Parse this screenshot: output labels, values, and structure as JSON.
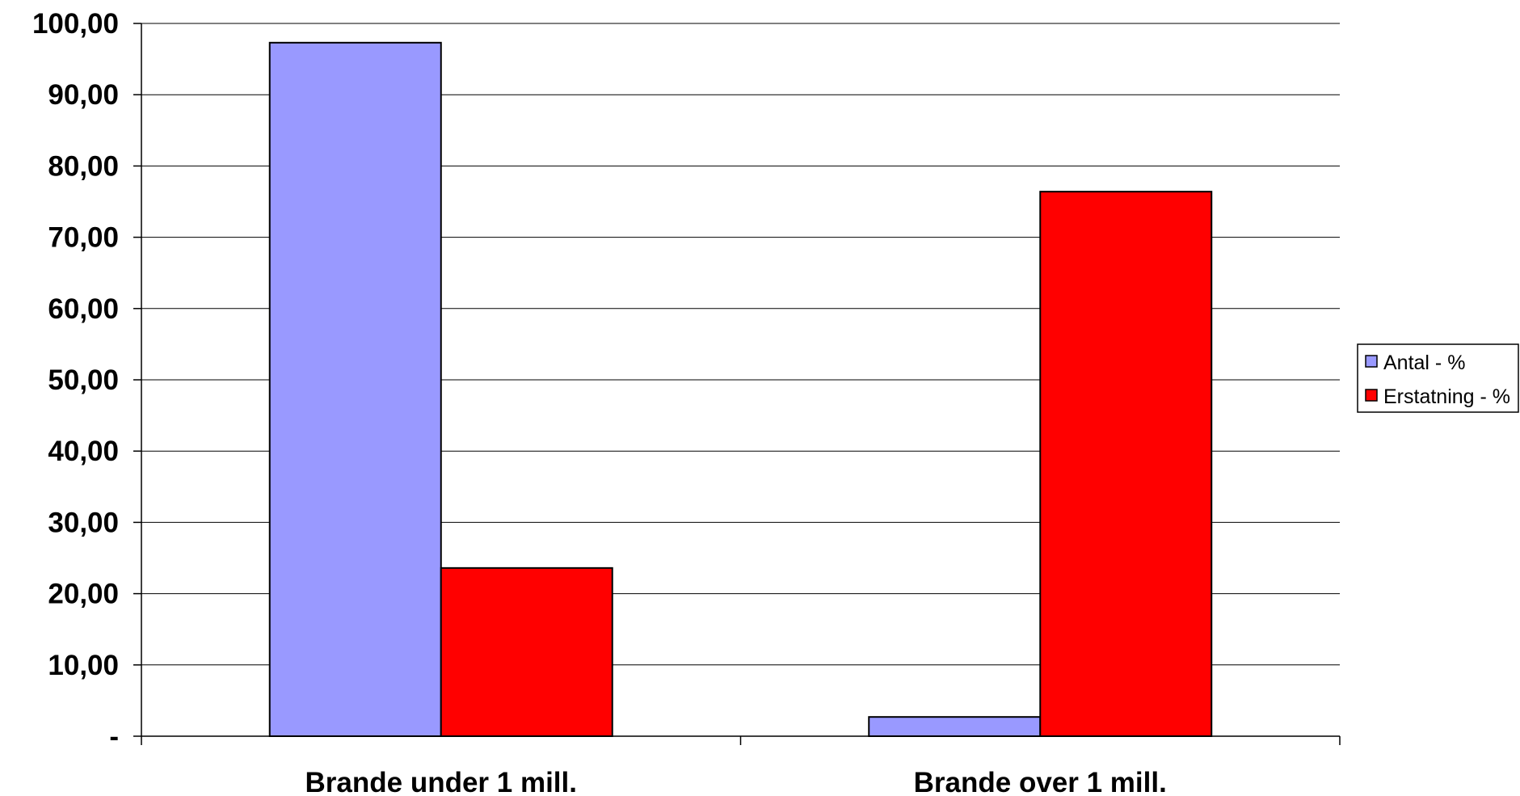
{
  "chart_data": {
    "type": "bar",
    "categories": [
      "Brande under 1 mill.",
      "Brande over 1 mill."
    ],
    "series": [
      {
        "name": "Antal - %",
        "color": "#9999ff",
        "values": [
          97.3,
          2.7
        ]
      },
      {
        "name": "Erstatning - %",
        "color": "#ff0000",
        "values": [
          23.6,
          76.4
        ]
      }
    ],
    "ylim": [
      0,
      100
    ],
    "y_ticks": [
      {
        "value": 0,
        "label": "-"
      },
      {
        "value": 10,
        "label": "10,00"
      },
      {
        "value": 20,
        "label": "20,00"
      },
      {
        "value": 30,
        "label": "30,00"
      },
      {
        "value": 40,
        "label": "40,00"
      },
      {
        "value": 50,
        "label": "50,00"
      },
      {
        "value": 60,
        "label": "60,00"
      },
      {
        "value": 70,
        "label": "70,00"
      },
      {
        "value": 80,
        "label": "80,00"
      },
      {
        "value": 90,
        "label": "90,00"
      },
      {
        "value": 100,
        "label": "100,00"
      }
    ],
    "grid": true,
    "legend_position": "right"
  }
}
